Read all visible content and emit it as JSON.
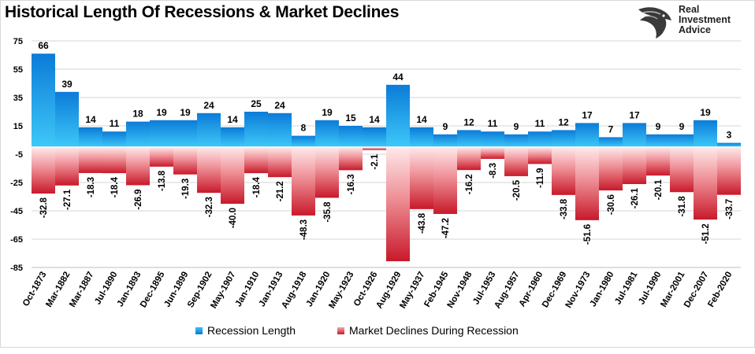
{
  "title": "Historical Length Of Recessions & Market Declines",
  "brand": {
    "line1": "Real",
    "line2": "Investment",
    "line3": "Advice"
  },
  "chart_data": {
    "type": "bar",
    "categories": [
      "Oct-1873",
      "Mar-1882",
      "Mar-1887",
      "Jul-1890",
      "Jan-1893",
      "Dec-1895",
      "Jun-1899",
      "Sep-1902",
      "May-1907",
      "Jan-1910",
      "Jan-1913",
      "Aug-1918",
      "Jan-1920",
      "May-1923",
      "Oct-1926",
      "Aug-1929",
      "May-1937",
      "Feb-1945",
      "Nov-1948",
      "Jul-1953",
      "Aug-1957",
      "Apr-1960",
      "Dec-1969",
      "Nov-1973",
      "Jan-1980",
      "Jul-1981",
      "Jul-1990",
      "Mar-2001",
      "Dec-2007",
      "Feb-2020"
    ],
    "series": [
      {
        "name": "Recession Length",
        "color": "#1e9ee8",
        "values": [
          66,
          39,
          14,
          11,
          18,
          19,
          19,
          24,
          14,
          25,
          24,
          8,
          19,
          15,
          14,
          44,
          14,
          9,
          12,
          11,
          9,
          11,
          12,
          17,
          7,
          17,
          9,
          9,
          19,
          3
        ]
      },
      {
        "name": "Market Declines During Recession",
        "color": "#d9303a",
        "values": [
          -32.8,
          -27.1,
          -18.3,
          -18.4,
          -26.9,
          -13.8,
          -19.3,
          -32.3,
          -40.0,
          -18.4,
          -21.2,
          -48.3,
          -35.8,
          -16.3,
          -2.1,
          -80.6,
          -43.8,
          -47.2,
          -16.2,
          -8.3,
          -20.5,
          -11.9,
          -33.8,
          -51.6,
          -30.6,
          -26.1,
          -20.1,
          -31.8,
          -51.2,
          -33.7
        ]
      }
    ],
    "value_labels": {
      "positive": [
        "66",
        "39",
        "14",
        "11",
        "18",
        "19",
        "19",
        "24",
        "14",
        "25",
        "24",
        "8",
        "19",
        "15",
        "14",
        "44",
        "14",
        "9",
        "12",
        "11",
        "9",
        "11",
        "12",
        "17",
        "7",
        "17",
        "9",
        "9",
        "19",
        "3"
      ],
      "negative": [
        "-32.8",
        "-27.1",
        "-18.3",
        "-18.4",
        "-26.9",
        "-13.8",
        "-19.3",
        "-32.3",
        "-40.0",
        "-18.4",
        "-21.2",
        "-48.3",
        "-35.8",
        "-16.3",
        "-2.1",
        "-80.6",
        "-43.8",
        "-47.2",
        "-16.2",
        "-8.3",
        "-20.5",
        "-11.9",
        "-33.8",
        "-51.6",
        "-30.6",
        "-26.1",
        "-20.1",
        "-31.8",
        "-51.2",
        "-33.7"
      ]
    },
    "ylim": [
      -85,
      75
    ],
    "yticks": [
      75,
      55,
      35,
      15,
      -5,
      -25,
      -45,
      -65,
      -85
    ],
    "ytick_labels": [
      "75",
      "55",
      "35",
      "15",
      "-5",
      "-25",
      "-45",
      "-65",
      "-85"
    ],
    "grid": true,
    "legend": "bottom-center"
  }
}
